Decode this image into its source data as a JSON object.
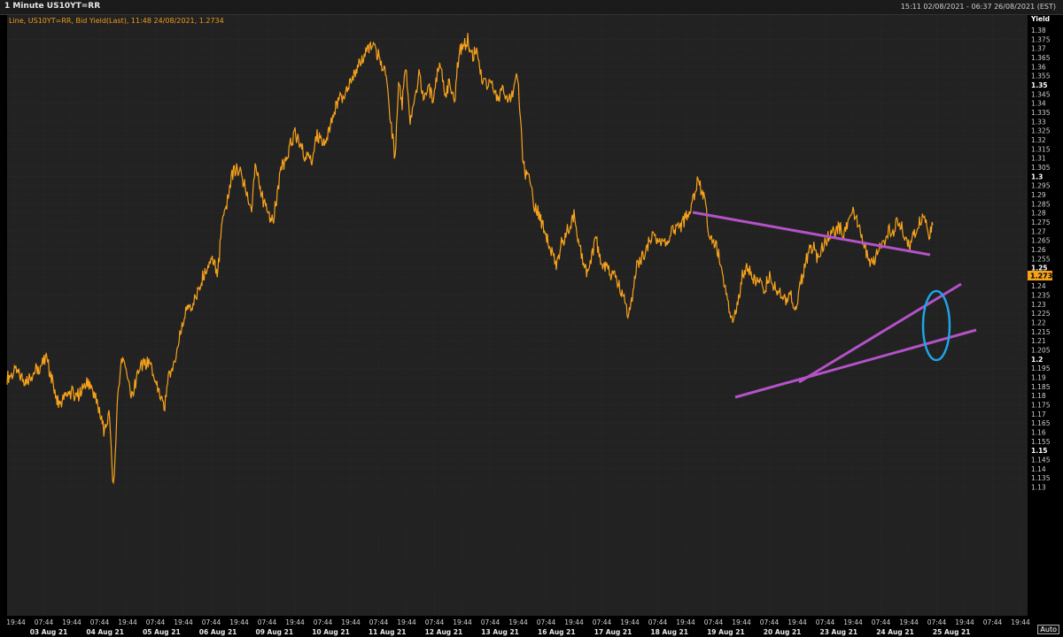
{
  "header": {
    "title": "1 Minute US10YT=RR",
    "date_range": "15:11 02/08/2021 - 06:37 26/08/2021 (EST)"
  },
  "legend": "Line, US10YT=RR, Bid Yield(Last), 11:48 24/08/2021, 1.2734",
  "controls": {
    "auto": "Auto"
  },
  "colors": {
    "background": "#222222",
    "line": "#f7a21b",
    "trend": "#b452c8",
    "ellipse": "#1ea4e8",
    "last_tag": "#f7a21b"
  },
  "chart_data": {
    "type": "line",
    "ylabel": "Yield",
    "ylim": [
      1.125,
      1.383
    ],
    "y_ticks": [
      "1.38",
      "1.375",
      "1.37",
      "1.365",
      "1.36",
      "1.355",
      "1.35",
      "1.345",
      "1.34",
      "1.335",
      "1.33",
      "1.325",
      "1.32",
      "1.315",
      "1.31",
      "1.305",
      "1.3",
      "1.295",
      "1.29",
      "1.285",
      "1.28",
      "1.275",
      "1.27",
      "1.265",
      "1.26",
      "1.255",
      "1.25",
      "1.245",
      "1.24",
      "1.235",
      "1.23",
      "1.225",
      "1.22",
      "1.215",
      "1.21",
      "1.205",
      "1.2",
      "1.195",
      "1.19",
      "1.185",
      "1.18",
      "1.175",
      "1.17",
      "1.165",
      "1.16",
      "1.155",
      "1.15",
      "1.145",
      "1.14",
      "1.135",
      "1.13"
    ],
    "y_bold_ticks": [
      "1.35",
      "1.3",
      "1.25",
      "1.2",
      "1.15"
    ],
    "x_time_ticks": [
      "19:44",
      "07:44",
      "19:44",
      "07:44",
      "19:44",
      "07:44",
      "19:44",
      "07:44",
      "19:44",
      "07:44",
      "19:44",
      "07:44",
      "19:44",
      "07:44",
      "19:44",
      "07:44",
      "19:44",
      "07:44",
      "19:44",
      "07:44",
      "19:44",
      "07:44",
      "19:44",
      "07:44",
      "19:44",
      "07:44",
      "19:44",
      "07:44",
      "19:44",
      "07:44",
      "19:44",
      "07:44",
      "19:44",
      "07:44",
      "19:44",
      "07:44",
      "19:44"
    ],
    "x_date_ticks": [
      "03 Aug 21",
      "04 Aug 21",
      "05 Aug 21",
      "06 Aug 21",
      "09 Aug 21",
      "10 Aug 21",
      "11 Aug 21",
      "12 Aug 21",
      "13 Aug 21",
      "16 Aug 21",
      "17 Aug 21",
      "18 Aug 21",
      "19 Aug 21",
      "20 Aug 21",
      "23 Aug 21",
      "24 Aug 21",
      "25 Aug 21"
    ],
    "last_value": "1.2734",
    "x": [
      0,
      10,
      20,
      35,
      45,
      50,
      58,
      70,
      80,
      90,
      100,
      110,
      115,
      120,
      122,
      125,
      130,
      135,
      140,
      150,
      160,
      170,
      178,
      182,
      190,
      200,
      210,
      220,
      230,
      238,
      242,
      248,
      253,
      260,
      268,
      276,
      280,
      290,
      300,
      310,
      315,
      320,
      325,
      330,
      336,
      344,
      350,
      360,
      365,
      372,
      380,
      390,
      398,
      405,
      412,
      420,
      428,
      433,
      438,
      442,
      446,
      450,
      455,
      460,
      465,
      470,
      475,
      480,
      485,
      490,
      495,
      500,
      505,
      510,
      515,
      520,
      525,
      530,
      535,
      540,
      545,
      550,
      555,
      560,
      565,
      570,
      575,
      578,
      582,
      586,
      590,
      595,
      600,
      605,
      610,
      615,
      620,
      625,
      630,
      635,
      640,
      645,
      650,
      655,
      660,
      665,
      670,
      675,
      680,
      690,
      695,
      700,
      705,
      710,
      715,
      720,
      725,
      730,
      740,
      750,
      760,
      770,
      780,
      788,
      792,
      796,
      800,
      805,
      810,
      815,
      820,
      825,
      830,
      835,
      840,
      845,
      850,
      855,
      860,
      865,
      870,
      875,
      880,
      885,
      890,
      895,
      900,
      905,
      910,
      915,
      920,
      925,
      930,
      935,
      940,
      945,
      950,
      955,
      960,
      965,
      970,
      975,
      980,
      985,
      990,
      995,
      1000,
      1005,
      1010,
      1015,
      1020,
      1025,
      1030,
      1035,
      1040,
      1045
    ],
    "y": [
      1.19,
      1.193,
      1.188,
      1.195,
      1.2,
      1.19,
      1.175,
      1.182,
      1.18,
      1.187,
      1.178,
      1.16,
      1.17,
      1.13,
      1.15,
      1.18,
      1.2,
      1.19,
      1.178,
      1.196,
      1.198,
      1.185,
      1.175,
      1.19,
      1.2,
      1.225,
      1.23,
      1.244,
      1.255,
      1.248,
      1.27,
      1.285,
      1.3,
      1.305,
      1.296,
      1.282,
      1.305,
      1.285,
      1.275,
      1.305,
      1.31,
      1.318,
      1.323,
      1.318,
      1.312,
      1.31,
      1.322,
      1.315,
      1.33,
      1.34,
      1.345,
      1.355,
      1.362,
      1.368,
      1.372,
      1.365,
      1.355,
      1.33,
      1.31,
      1.352,
      1.34,
      1.36,
      1.33,
      1.34,
      1.355,
      1.345,
      1.35,
      1.342,
      1.355,
      1.36,
      1.345,
      1.352,
      1.34,
      1.368,
      1.37,
      1.375,
      1.366,
      1.368,
      1.355,
      1.35,
      1.352,
      1.345,
      1.342,
      1.348,
      1.34,
      1.345,
      1.355,
      1.345,
      1.31,
      1.3,
      1.298,
      1.285,
      1.28,
      1.273,
      1.265,
      1.258,
      1.25,
      1.262,
      1.268,
      1.272,
      1.28,
      1.262,
      1.255,
      1.245,
      1.258,
      1.265,
      1.255,
      1.25,
      1.248,
      1.242,
      1.235,
      1.225,
      1.23,
      1.25,
      1.255,
      1.258,
      1.265,
      1.268,
      1.262,
      1.27,
      1.272,
      1.28,
      1.298,
      1.285,
      1.27,
      1.265,
      1.262,
      1.255,
      1.24,
      1.228,
      1.22,
      1.232,
      1.245,
      1.25,
      1.248,
      1.242,
      1.245,
      1.238,
      1.245,
      1.24,
      1.238,
      1.235,
      1.23,
      1.235,
      1.225,
      1.24,
      1.25,
      1.258,
      1.262,
      1.255,
      1.26,
      1.265,
      1.268,
      1.27,
      1.272,
      1.268,
      1.275,
      1.282,
      1.275,
      1.265,
      1.258,
      1.252,
      1.255,
      1.26,
      1.265,
      1.27,
      1.268,
      1.275,
      1.272,
      1.265,
      1.262,
      1.27,
      1.275,
      1.28,
      1.265,
      1.2734
    ]
  }
}
